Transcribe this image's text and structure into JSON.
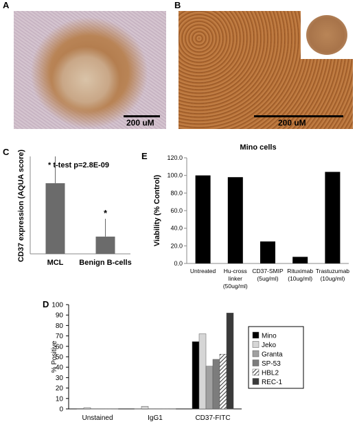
{
  "panels": {
    "A": {
      "letter": "A",
      "scale_label": "200 uM"
    },
    "B": {
      "letter": "B",
      "scale_label": "200 uM"
    },
    "C": {
      "letter": "C"
    },
    "D": {
      "letter": "D"
    },
    "E": {
      "letter": "E"
    }
  },
  "chart_data": [
    {
      "panel": "C",
      "type": "bar",
      "categories": [
        "MCL",
        "Benign B-cells"
      ],
      "values": [
        348,
        85
      ],
      "error_upper": [
        132,
        88
      ],
      "ylabel": "CD37 expression (AQUA score)",
      "annotation": "* t-test p=2.8E-09",
      "star": "*",
      "ylim": [
        0,
        480
      ],
      "colors": {
        "bar": "#6b6b6b"
      }
    },
    {
      "panel": "E",
      "type": "bar",
      "title": "Mino cells",
      "categories": [
        [
          "Untreated"
        ],
        [
          "Hu-cross",
          "linker",
          "(50ug/ml)"
        ],
        [
          "CD37-SMIP",
          "(5ug/ml)"
        ],
        [
          "Rituximab",
          "(10ug/ml)"
        ],
        [
          "Trastuzumab",
          "(10ug/ml)"
        ]
      ],
      "values": [
        100.0,
        98.0,
        25.0,
        7.5,
        104.0
      ],
      "ylabel": "Viability (% Control)",
      "yticks": [
        "0.0",
        "20.0",
        "40.0",
        "60.0",
        "80.0",
        "100.0",
        "120.0"
      ],
      "ylim": [
        0,
        120
      ],
      "colors": {
        "bar": "#000000"
      }
    },
    {
      "panel": "D",
      "type": "bar",
      "categories": [
        "Unstained",
        "IgG1",
        "CD37-FITC"
      ],
      "series": [
        {
          "name": "Mino",
          "values": [
            0.3,
            0.2,
            64.5
          ],
          "color": "#000000"
        },
        {
          "name": "Jeko",
          "values": [
            1.2,
            2.5,
            72.0
          ],
          "color": "#d6d6d6"
        },
        {
          "name": "Granta",
          "values": [
            0.2,
            0.2,
            41.0
          ],
          "color": "#a0a0a0"
        },
        {
          "name": "SP-53",
          "values": [
            0.2,
            0.2,
            47.5
          ],
          "color": "#7c7c7c"
        },
        {
          "name": "HBL2",
          "values": [
            0.2,
            0.2,
            52.5
          ],
          "color": "hatch"
        },
        {
          "name": "REC-1",
          "values": [
            0.2,
            0.2,
            92.0
          ],
          "color": "#3a3a3a"
        }
      ],
      "ylabel": "% Positive",
      "yticks": [
        "0",
        "10",
        "20",
        "30",
        "40",
        "50",
        "60",
        "70",
        "80",
        "90",
        "100"
      ],
      "ylim": [
        0,
        100
      ]
    }
  ]
}
